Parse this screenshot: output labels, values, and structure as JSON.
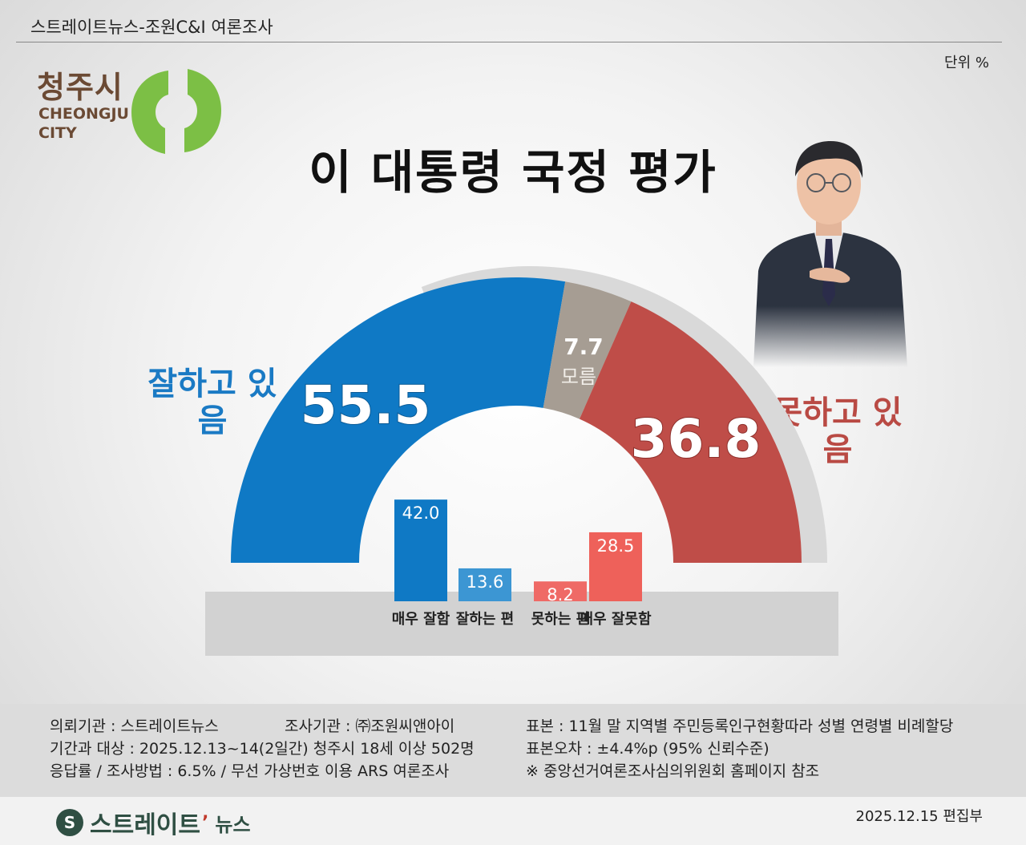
{
  "header": {
    "source": "스트레이트뉴스-조원C&I 여론조사",
    "unit": "단위 %"
  },
  "logo": {
    "name_kr": "청주시",
    "name_en": "CHEONGJU CITY",
    "mark_icon": "cheongju-city-logo-icon"
  },
  "title": "이 대통령 국정 평가",
  "photo_icon": "president-photo-icon",
  "labels": {
    "positive": "잘하고 있음",
    "negative": "못하고 있음"
  },
  "chart_data": [
    {
      "type": "pie",
      "shape": "half-donut",
      "categories": [
        "잘하고 있음",
        "모름",
        "못하고 있음"
      ],
      "values": [
        55.5,
        7.7,
        36.8
      ],
      "value_labels": [
        "55.5",
        "7.7",
        "36.8"
      ],
      "inner_labels": [
        "",
        "모름",
        ""
      ],
      "colors": [
        "#0f79c5",
        "#a69d93",
        "#bf4d48"
      ]
    },
    {
      "type": "bar",
      "categories": [
        "매우 잘함",
        "잘하는 편",
        "못하는 편",
        "매우 잘못함"
      ],
      "values": [
        42.0,
        13.6,
        8.2,
        28.5
      ],
      "value_labels": [
        "42.0",
        "13.6",
        "8.2",
        "28.5"
      ],
      "colors": [
        "#0f79c5",
        "#3c96d3",
        "#ef6a66",
        "#ee615a"
      ]
    }
  ],
  "footer": {
    "col1": [
      "의뢰기관 : 스트레이트뉴스",
      "기간과 대상 : 2025.12.13~14(2일간)  청주시 18세 이상 502명",
      "응답률 / 조사방법 : 6.5% / 무선 가상번호 이용 ARS 여론조사"
    ],
    "col2": [
      "조사기관 : ㈜조원씨앤아이"
    ],
    "col3": [
      "표본 : 11월 말 지역별 주민등록인구현황따라 성별 연령별 비례할당",
      "표본오차 : ±4.4%p (95% 신뢰수준)",
      "※ 중앙선거여론조사심의위원회 홈페이지 참조"
    ]
  },
  "brand": {
    "name": "스트레이트",
    "accent": "’",
    "sub": "뉴스",
    "icon": "straight-news-logo-icon"
  },
  "date": "2025.12.15 편집부"
}
